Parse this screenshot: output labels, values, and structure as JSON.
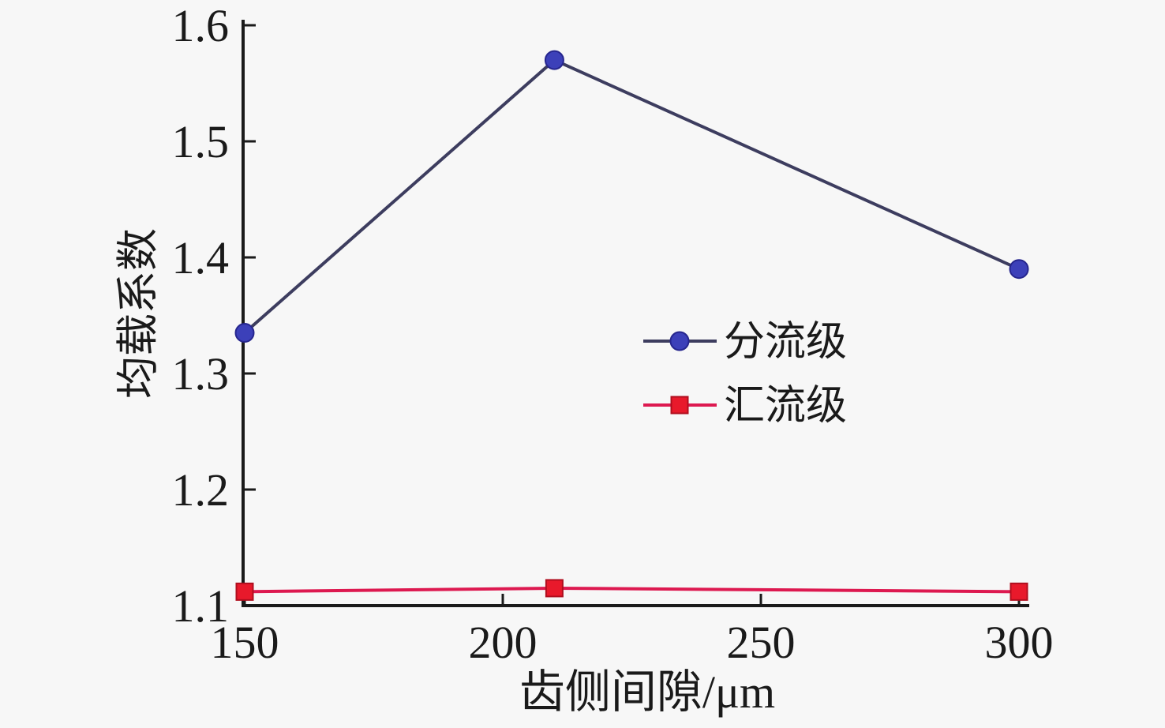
{
  "figure": {
    "background": "#f7f7f7",
    "axis_color": "#1a1a1a",
    "text_color": "#1a1a1a"
  },
  "chart_data": {
    "type": "line",
    "title": "",
    "xlabel": "齿侧间隙/μm",
    "ylabel": "均载系数",
    "x": [
      150,
      210,
      300
    ],
    "series": [
      {
        "name": "分流级",
        "values": [
          1.335,
          1.57,
          1.39
        ],
        "line_color": "#3d3d5f",
        "marker": "circle",
        "marker_color": "#3c40b9",
        "marker_edge": "#26268e"
      },
      {
        "name": "汇流级",
        "values": [
          1.112,
          1.115,
          1.112
        ],
        "line_color": "#dd1950",
        "marker": "square",
        "marker_color": "#e8192b",
        "marker_edge": "#b00e1e"
      }
    ],
    "xlim": [
      150,
      300
    ],
    "ylim": [
      1.1,
      1.6
    ],
    "x_ticks": [
      150,
      200,
      250,
      300
    ],
    "x_tick_labels": [
      "150",
      "200",
      "250",
      "300"
    ],
    "y_ticks": [
      1.1,
      1.2,
      1.3,
      1.4,
      1.5,
      1.6
    ],
    "y_tick_labels": [
      "1.1",
      "1.2",
      "1.3",
      "1.4",
      "1.5",
      "1.6"
    ],
    "grid": false,
    "legend_position": "inside center-right",
    "legend_border": false
  }
}
